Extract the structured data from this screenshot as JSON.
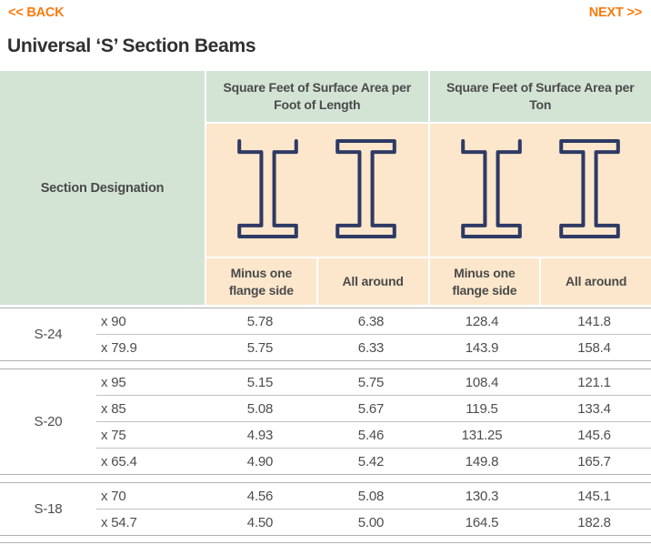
{
  "nav": {
    "back_label": "<< BACK",
    "next_label": "NEXT >>"
  },
  "title": "Universal ‘S’ Section Beams",
  "colors": {
    "accent_orange": "#f97b0d",
    "header_green": "#d3e4d5",
    "header_peach": "#fce7cc",
    "beam_outline_navy": "#2e3a64",
    "body_text": "#4d4d4d"
  },
  "table": {
    "section_designation_header": "Section Designation",
    "group_headers": [
      "Square Feet of Surface Area per Foot of Length",
      "Square Feet of Surface Area per Ton"
    ],
    "icons": [
      "ibeam-minus-one-flange-icon",
      "ibeam-all-around-icon",
      "ibeam-minus-one-flange-icon",
      "ibeam-all-around-icon"
    ],
    "sub_headers": [
      "Minus one flange side",
      "All around",
      "Minus one flange side",
      "All around"
    ],
    "groups": [
      {
        "label": "S-24",
        "rows": [
          {
            "size": "x 90",
            "values": [
              "5.78",
              "6.38",
              "128.4",
              "141.8"
            ]
          },
          {
            "size": "x 79.9",
            "values": [
              "5.75",
              "6.33",
              "143.9",
              "158.4"
            ]
          }
        ]
      },
      {
        "label": "S-20",
        "rows": [
          {
            "size": "x 95",
            "values": [
              "5.15",
              "5.75",
              "108.4",
              "121.1"
            ]
          },
          {
            "size": "x 85",
            "values": [
              "5.08",
              "5.67",
              "119.5",
              "133.4"
            ]
          },
          {
            "size": "x 75",
            "values": [
              "4.93",
              "5.46",
              "131.25",
              "145.6"
            ]
          },
          {
            "size": "x 65.4",
            "values": [
              "4.90",
              "5.42",
              "149.8",
              "165.7"
            ]
          }
        ]
      },
      {
        "label": "S-18",
        "rows": [
          {
            "size": "x 70",
            "values": [
              "4.56",
              "5.08",
              "130.3",
              "145.1"
            ]
          },
          {
            "size": "x 54.7",
            "values": [
              "4.50",
              "5.00",
              "164.5",
              "182.8"
            ]
          }
        ]
      }
    ]
  }
}
